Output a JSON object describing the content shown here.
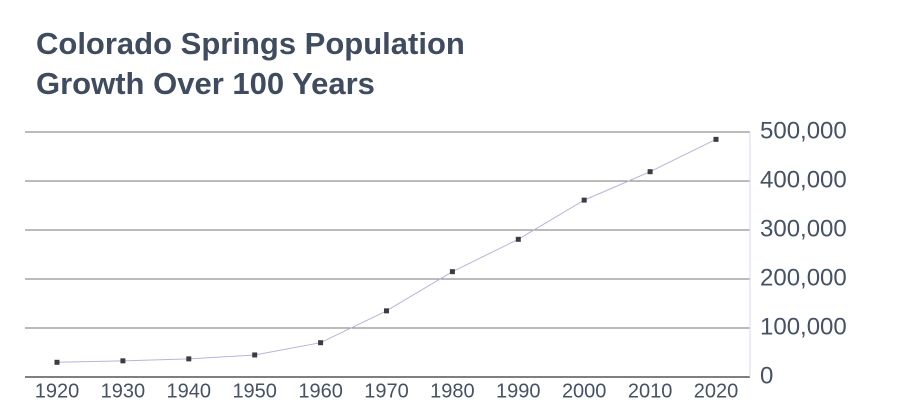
{
  "chart_data": {
    "type": "line",
    "title": [
      "Colorado Springs Population",
      "Growth Over 100 Years"
    ],
    "categories": [
      "1920",
      "1930",
      "1940",
      "1950",
      "1960",
      "1970",
      "1980",
      "1990",
      "2000",
      "2010",
      "2020"
    ],
    "values": [
      30000,
      33000,
      37000,
      45000,
      70000,
      135000,
      215000,
      281000,
      361000,
      419000,
      485000
    ],
    "color": "#b3b6da",
    "marker_color": "#3a3d44",
    "ylim": [
      0,
      500000
    ],
    "yticks": [
      0,
      {
        "value": 100000,
        "label": "100,000"
      },
      {
        "value": 200000,
        "label": "200,000"
      },
      {
        "value": 300000,
        "label": "300,000"
      },
      {
        "value": 400000,
        "label": "400,000"
      },
      {
        "value": 500000,
        "label": "500,000"
      }
    ],
    "grid": true,
    "y_axis_side": "right"
  }
}
